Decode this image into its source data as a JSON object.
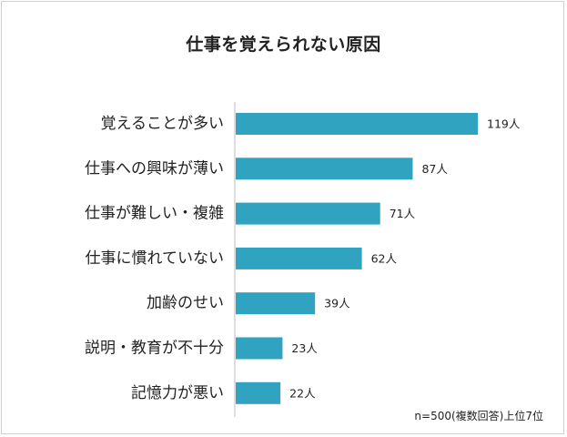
{
  "chart_data": {
    "type": "bar",
    "orientation": "horizontal",
    "title": "仕事を覚えられない原因",
    "categories": [
      "覚えることが多い",
      "仕事への興味が薄い",
      "仕事が難しい・複雑",
      "仕事に慣れていない",
      "加齢のせい",
      "説明・教育が不十分",
      "記憶力が悪い"
    ],
    "values": [
      119,
      87,
      71,
      62,
      39,
      23,
      22
    ],
    "value_labels": [
      "119人",
      "87人",
      "71人",
      "62人",
      "39人",
      "23人",
      "22人"
    ],
    "bar_color": "#2fa3bf",
    "axis_color": "#bdbdbd",
    "xlim": [
      0,
      119
    ],
    "footnote": "n=500(複数回答)上位7位"
  }
}
